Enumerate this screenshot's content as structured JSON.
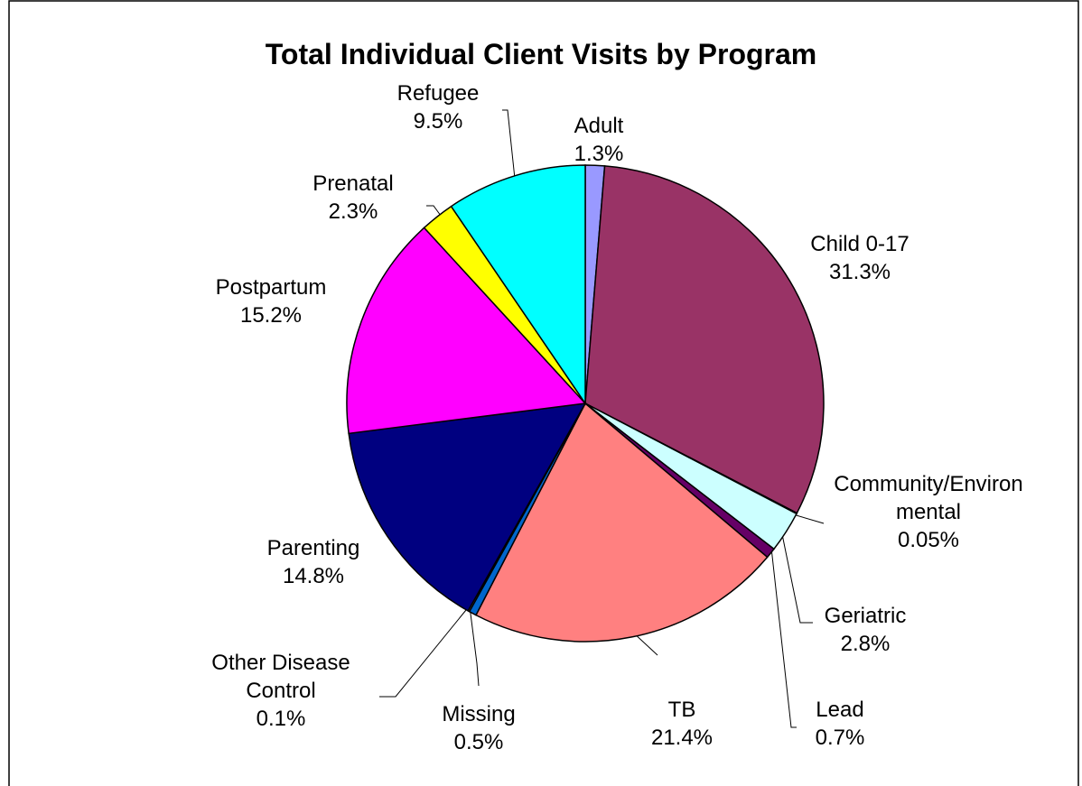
{
  "chart_data": {
    "type": "pie",
    "title": "Total Individual Client Visits by Program",
    "categories": [
      "Adult",
      "Child 0-17",
      "Community/Environmental",
      "Geriatric",
      "Lead",
      "TB",
      "Missing",
      "Other Disease Control",
      "Parenting",
      "Postpartum",
      "Prenatal",
      "Refugee"
    ],
    "values": [
      1.3,
      31.3,
      0.05,
      2.8,
      0.7,
      21.4,
      0.5,
      0.1,
      14.8,
      15.2,
      2.3,
      9.5
    ],
    "value_labels": [
      "1.3%",
      "31.3%",
      "0.05%",
      "2.8%",
      "0.7%",
      "21.4%",
      "0.5%",
      "0.1%",
      "14.8%",
      "15.2%",
      "2.3%",
      "9.5%"
    ],
    "colors": [
      "#9999ff",
      "#993366",
      "#ffffcc",
      "#ccffff",
      "#660066",
      "#ff8080",
      "#0066cc",
      "#ccccff",
      "#000080",
      "#ff00ff",
      "#ffff00",
      "#00ffff"
    ]
  }
}
